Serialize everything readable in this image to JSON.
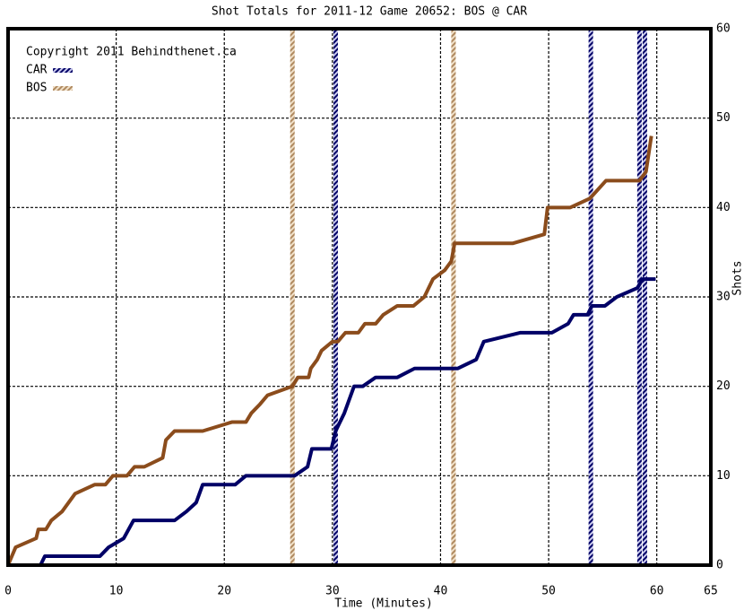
{
  "chart_data": {
    "type": "line",
    "title": "Shot Totals for 2011-12 Game 20652: BOS @ CAR",
    "x_label": "Time (Minutes)",
    "y_label": "Shots",
    "copyright": "Copyright 2011 Behindthenet.ca",
    "xlim": [
      0,
      65
    ],
    "ylim": [
      0,
      60
    ],
    "xticks": [
      0,
      10,
      20,
      30,
      40,
      50,
      60,
      65
    ],
    "yticks": [
      0,
      10,
      20,
      30,
      40,
      50,
      60
    ],
    "grid": true,
    "series": [
      {
        "name": "CAR",
        "color": "#000066",
        "x": [
          0,
          3,
          3.4,
          8.5,
          9.3,
          10.7,
          11.6,
          15.4,
          16.5,
          17.4,
          18,
          21,
          22,
          26.5,
          27.7,
          28.1,
          29.9,
          30.3,
          31.1,
          32,
          32.8,
          34,
          36,
          37.6,
          41.6,
          43.3,
          44,
          47.4,
          50.3,
          51.8,
          52.3,
          53.6,
          54,
          55.2,
          56.3,
          58.2,
          58.7,
          59.9
        ],
        "values": [
          0,
          0,
          1,
          1,
          2,
          3,
          5,
          5,
          6,
          7,
          9,
          9,
          10,
          10,
          11,
          13,
          13,
          15,
          17,
          20,
          20,
          21,
          21,
          22,
          22,
          23,
          25,
          26,
          26,
          27,
          28,
          28,
          29,
          29,
          30,
          31,
          32,
          32
        ],
        "goals": [
          30.3,
          53.9,
          58.4,
          58.9
        ]
      },
      {
        "name": "BOS",
        "color": "#8b4c1c",
        "x": [
          0,
          0.7,
          2.6,
          2.8,
          3.5,
          4,
          5,
          6.2,
          8,
          9,
          9.7,
          11,
          11.7,
          12.6,
          14.3,
          14.6,
          15.4,
          18,
          20.7,
          22,
          22.5,
          23.3,
          24,
          26.3,
          26.8,
          27.8,
          28,
          28.6,
          29,
          30,
          30.5,
          31.2,
          32.4,
          33,
          34,
          34.7,
          36,
          37.5,
          38.5,
          39.3,
          40.4,
          41,
          41.3,
          46.7,
          49.6,
          49.9,
          52,
          53.8,
          55.3,
          58.4,
          59,
          59.5
        ],
        "values": [
          0,
          2,
          3,
          4,
          4,
          5,
          6,
          8,
          9,
          9,
          10,
          10,
          11,
          11,
          12,
          14,
          15,
          15,
          16,
          16,
          17,
          18,
          19,
          20,
          21,
          21,
          22,
          23,
          24,
          25,
          25,
          26,
          26,
          27,
          27,
          28,
          29,
          29,
          30,
          32,
          33,
          34,
          36,
          36,
          37,
          40,
          40,
          41,
          43,
          43,
          44,
          48
        ],
        "goals": [
          26.3,
          41.2
        ]
      }
    ]
  }
}
